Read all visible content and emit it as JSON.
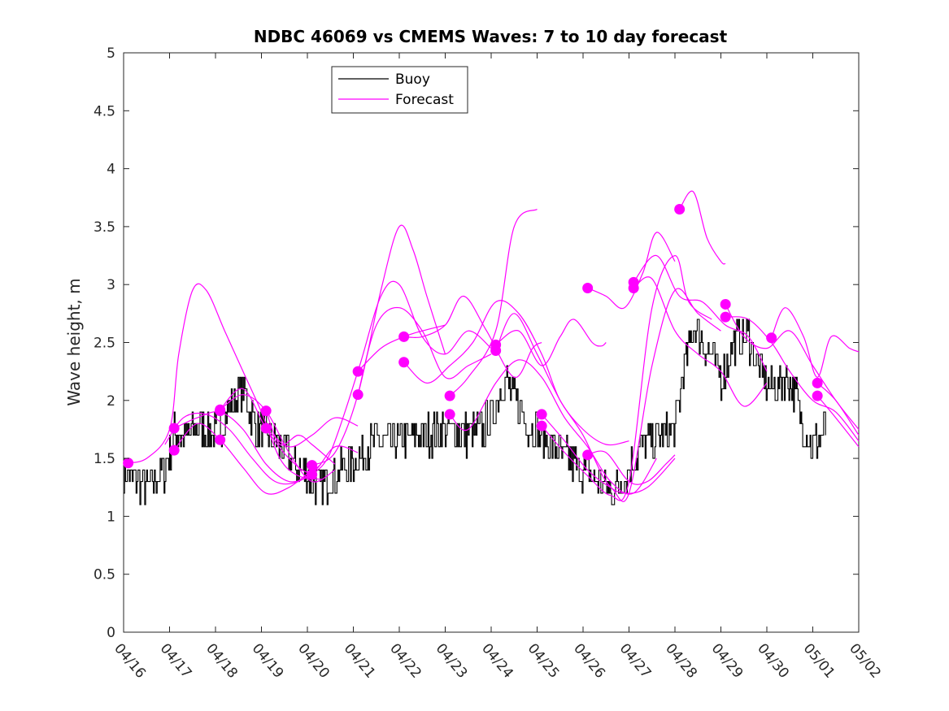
{
  "chart_data": {
    "type": "line",
    "title": "NDBC 46069 vs CMEMS Waves: 7 to 10 day forecast",
    "xlabel": "",
    "ylabel": "Wave height, m",
    "xlim": [
      0,
      16
    ],
    "ylim": [
      0,
      5
    ],
    "grid": false,
    "legend_position": "top-left",
    "x_tick_values": [
      0,
      1,
      2,
      3,
      4,
      5,
      6,
      7,
      8,
      9,
      10,
      11,
      12,
      13,
      14,
      15,
      16
    ],
    "x_tick_labels": [
      "04/16",
      "04/17",
      "04/18",
      "04/19",
      "04/20",
      "04/21",
      "04/22",
      "04/23",
      "04/24",
      "04/25",
      "04/26",
      "04/27",
      "04/28",
      "04/29",
      "04/30",
      "05/01",
      "05/02"
    ],
    "y_ticks": [
      0,
      0.5,
      1,
      1.5,
      2,
      2.5,
      3,
      3.5,
      4,
      4.5,
      5
    ],
    "y_tick_labels": [
      "0",
      "0.5",
      "1",
      "1.5",
      "2",
      "2.5",
      "3",
      "3.5",
      "4",
      "4.5",
      "5"
    ],
    "colors": {
      "buoy": "#000000",
      "forecast": "#ff00ff"
    },
    "legend": [
      {
        "name": "Buoy",
        "color": "#000000"
      },
      {
        "name": "Forecast",
        "color": "#ff00ff"
      }
    ],
    "buoy": {
      "name": "Buoy",
      "points": [
        [
          0,
          1.38
        ],
        [
          0.5,
          1.25
        ],
        [
          0.9,
          1.4
        ],
        [
          1.1,
          1.75
        ],
        [
          1.3,
          1.65
        ],
        [
          1.6,
          1.8
        ],
        [
          2,
          1.7
        ],
        [
          2.3,
          1.95
        ],
        [
          2.6,
          2.1
        ],
        [
          2.9,
          1.75
        ],
        [
          3.3,
          1.65
        ],
        [
          3.7,
          1.45
        ],
        [
          4,
          1.35
        ],
        [
          4.3,
          1.25
        ],
        [
          4.6,
          1.35
        ],
        [
          5,
          1.48
        ],
        [
          5.5,
          1.65
        ],
        [
          6,
          1.65
        ],
        [
          6.5,
          1.7
        ],
        [
          7,
          1.75
        ],
        [
          7.5,
          1.7
        ],
        [
          7.8,
          1.75
        ],
        [
          8,
          1.85
        ],
        [
          8.3,
          2.2
        ],
        [
          8.5,
          2.0
        ],
        [
          8.8,
          1.8
        ],
        [
          9.2,
          1.65
        ],
        [
          9.6,
          1.5
        ],
        [
          10,
          1.4
        ],
        [
          10.3,
          1.3
        ],
        [
          10.6,
          1.2
        ],
        [
          10.9,
          1.35
        ],
        [
          11.2,
          1.55
        ],
        [
          11.5,
          1.65
        ],
        [
          12,
          1.75
        ],
        [
          12.2,
          2.3
        ],
        [
          12.4,
          2.65
        ],
        [
          12.7,
          2.45
        ],
        [
          13,
          2.2
        ],
        [
          13.3,
          2.5
        ],
        [
          13.6,
          2.55
        ],
        [
          13.9,
          2.2
        ],
        [
          14.2,
          2.1
        ],
        [
          14.4,
          2.2
        ],
        [
          14.6,
          2.1
        ],
        [
          14.8,
          1.75
        ],
        [
          15,
          1.6
        ],
        [
          15.3,
          1.75
        ]
      ]
    },
    "forecast": {
      "name": "Forecast",
      "series": [
        [
          [
            0,
            1.46
          ],
          [
            0.5,
            1.5
          ],
          [
            1,
            1.75
          ],
          [
            1.2,
            2.4
          ],
          [
            1.5,
            2.95
          ],
          [
            1.8,
            2.95
          ],
          [
            2.2,
            2.6
          ],
          [
            2.6,
            2.25
          ],
          [
            3,
            1.9
          ],
          [
            3.4,
            1.5
          ],
          [
            3.8,
            1.35
          ],
          [
            4.3,
            1.32
          ]
        ],
        [
          [
            0.9,
            1.62
          ],
          [
            1.3,
            1.85
          ],
          [
            1.8,
            1.88
          ],
          [
            2.3,
            1.75
          ],
          [
            2.8,
            1.5
          ],
          [
            3.3,
            1.3
          ],
          [
            3.8,
            1.3
          ],
          [
            4.3,
            1.45
          ]
        ],
        [
          [
            1.1,
            1.76
          ],
          [
            1.6,
            1.85
          ],
          [
            2.1,
            1.9
          ],
          [
            2.6,
            1.75
          ],
          [
            3.1,
            1.45
          ],
          [
            3.6,
            1.3
          ],
          [
            4.1,
            1.35
          ]
        ],
        [
          [
            1.1,
            1.57
          ],
          [
            1.6,
            1.8
          ],
          [
            2.1,
            1.66
          ],
          [
            2.6,
            1.42
          ],
          [
            3.1,
            1.2
          ],
          [
            3.6,
            1.25
          ],
          [
            4.1,
            1.4
          ]
        ],
        [
          [
            2.1,
            1.92
          ],
          [
            2.6,
            2.05
          ],
          [
            3.1,
            1.91
          ],
          [
            3.6,
            1.55
          ],
          [
            4.1,
            1.3
          ],
          [
            4.6,
            1.4
          ]
        ],
        [
          [
            2.1,
            1.92
          ],
          [
            2.6,
            2.1
          ],
          [
            3.1,
            1.76
          ],
          [
            3.6,
            1.5
          ],
          [
            4.1,
            1.38
          ],
          [
            4.6,
            1.6
          ],
          [
            5.1,
            1.55
          ]
        ],
        [
          [
            3.1,
            1.91
          ],
          [
            3.4,
            1.62
          ],
          [
            3.8,
            1.7
          ],
          [
            4.1,
            1.62
          ],
          [
            4.6,
            1.45
          ]
        ],
        [
          [
            3.1,
            1.76
          ],
          [
            3.6,
            1.6
          ],
          [
            4.1,
            1.7
          ],
          [
            4.6,
            1.85
          ],
          [
            5.1,
            1.78
          ]
        ],
        [
          [
            4.1,
            1.44
          ],
          [
            4.6,
            1.55
          ],
          [
            5.1,
            2.05
          ],
          [
            5.6,
            2.95
          ],
          [
            6,
            3.5
          ],
          [
            6.3,
            3.3
          ],
          [
            6.6,
            2.9
          ],
          [
            7,
            2.4
          ]
        ],
        [
          [
            4.1,
            1.36
          ],
          [
            4.5,
            1.55
          ],
          [
            5.1,
            2.25
          ],
          [
            5.6,
            2.9
          ],
          [
            6,
            3.0
          ],
          [
            6.5,
            2.55
          ],
          [
            7,
            2.4
          ],
          [
            7.5,
            2.6
          ],
          [
            8,
            2.45
          ]
        ],
        [
          [
            5.1,
            2.05
          ],
          [
            5.5,
            2.65
          ],
          [
            6,
            2.8
          ],
          [
            6.5,
            2.6
          ],
          [
            7,
            2.2
          ],
          [
            7.5,
            2.3
          ],
          [
            8,
            2.4
          ]
        ],
        [
          [
            5.1,
            2.25
          ],
          [
            5.6,
            2.45
          ],
          [
            6.1,
            2.55
          ],
          [
            6.5,
            2.6
          ],
          [
            7,
            2.65
          ]
        ],
        [
          [
            6.1,
            2.55
          ],
          [
            6.5,
            2.55
          ],
          [
            7,
            2.65
          ],
          [
            7.4,
            2.9
          ],
          [
            7.9,
            2.6
          ],
          [
            8.5,
            2.2
          ],
          [
            8.9,
            2.45
          ],
          [
            9.1,
            2.5
          ]
        ],
        [
          [
            6.1,
            2.33
          ],
          [
            6.6,
            2.15
          ],
          [
            7.1,
            2.3
          ],
          [
            7.6,
            2.5
          ],
          [
            8.1,
            2.85
          ],
          [
            8.6,
            2.75
          ],
          [
            9.1,
            2.4
          ],
          [
            9.5,
            2.0
          ],
          [
            10,
            1.75
          ],
          [
            10.5,
            1.62
          ],
          [
            11,
            1.65
          ]
        ],
        [
          [
            7.1,
            2.04
          ],
          [
            7.5,
            2.2
          ],
          [
            8.1,
            2.6
          ],
          [
            8.5,
            3.5
          ],
          [
            9,
            3.65
          ]
        ],
        [
          [
            7.1,
            1.88
          ],
          [
            7.5,
            1.75
          ],
          [
            8.1,
            2.15
          ],
          [
            8.6,
            2.35
          ],
          [
            9.1,
            2.2
          ],
          [
            9.6,
            1.85
          ],
          [
            10.1,
            1.6
          ],
          [
            10.6,
            1.3
          ],
          [
            11.1,
            1.2
          ],
          [
            11.6,
            1.5
          ]
        ],
        [
          [
            8.1,
            2.48
          ],
          [
            8.6,
            2.6
          ],
          [
            9.1,
            2.3
          ],
          [
            9.5,
            2.55
          ],
          [
            9.8,
            2.7
          ],
          [
            10.2,
            2.5
          ],
          [
            10.4,
            2.47
          ],
          [
            10.5,
            2.5
          ]
        ],
        [
          [
            8.1,
            2.43
          ],
          [
            8.5,
            2.75
          ],
          [
            9,
            2.4
          ],
          [
            9.5,
            2.0
          ],
          [
            10,
            1.7
          ],
          [
            10.5,
            1.3
          ],
          [
            10.9,
            1.2
          ],
          [
            11.4,
            1.25
          ],
          [
            12,
            1.5
          ]
        ],
        [
          [
            9.1,
            1.88
          ],
          [
            9.6,
            1.65
          ],
          [
            10.1,
            1.4
          ],
          [
            10.6,
            1.25
          ],
          [
            11,
            1.2
          ],
          [
            11.5,
            2.3
          ],
          [
            12,
            2.95
          ],
          [
            12.5,
            2.75
          ],
          [
            13,
            2.6
          ]
        ],
        [
          [
            9.1,
            1.78
          ],
          [
            9.6,
            1.55
          ],
          [
            10.1,
            1.35
          ],
          [
            10.6,
            1.18
          ],
          [
            11,
            1.3
          ],
          [
            11.5,
            2.8
          ],
          [
            12,
            3.25
          ],
          [
            12.3,
            2.85
          ],
          [
            12.8,
            2.7
          ]
        ],
        [
          [
            10.1,
            2.97
          ],
          [
            10.5,
            2.9
          ],
          [
            10.9,
            2.8
          ],
          [
            11.3,
            3.1
          ],
          [
            11.6,
            3.45
          ],
          [
            12,
            3.2
          ]
        ],
        [
          [
            10.1,
            1.53
          ],
          [
            10.5,
            1.55
          ],
          [
            11,
            1.3
          ],
          [
            11.4,
            1.3
          ],
          [
            11.8,
            1.45
          ],
          [
            12,
            1.53
          ]
        ],
        [
          [
            11.1,
            3.02
          ],
          [
            11.6,
            3.25
          ],
          [
            12.1,
            2.9
          ],
          [
            12.6,
            2.85
          ],
          [
            13.1,
            2.65
          ],
          [
            13.6,
            2.55
          ],
          [
            14,
            2.25
          ]
        ],
        [
          [
            11.1,
            2.97
          ],
          [
            11.5,
            3.05
          ],
          [
            12,
            2.6
          ],
          [
            12.5,
            2.4
          ],
          [
            13,
            2.25
          ],
          [
            13.5,
            1.95
          ],
          [
            14,
            2.15
          ]
        ],
        [
          [
            12.1,
            3.65
          ],
          [
            12.4,
            3.8
          ],
          [
            12.7,
            3.4
          ],
          [
            13,
            3.2
          ],
          [
            13.1,
            3.18
          ]
        ],
        [
          [
            13.1,
            2.83
          ],
          [
            13.5,
            2.55
          ],
          [
            14,
            2.45
          ],
          [
            14.5,
            2.6
          ],
          [
            15,
            2.3
          ],
          [
            15.5,
            2.0
          ],
          [
            16,
            1.75
          ]
        ],
        [
          [
            13.1,
            2.72
          ],
          [
            13.6,
            2.7
          ],
          [
            14.1,
            2.5
          ],
          [
            14.5,
            2.25
          ],
          [
            15,
            2.0
          ],
          [
            15.5,
            1.9
          ],
          [
            16,
            1.65
          ]
        ],
        [
          [
            14.1,
            2.54
          ],
          [
            14.4,
            2.8
          ],
          [
            14.8,
            2.55
          ],
          [
            15.1,
            2.2
          ],
          [
            15.4,
            2.55
          ],
          [
            15.8,
            2.45
          ],
          [
            16,
            2.42
          ]
        ],
        [
          [
            15.1,
            2.15
          ],
          [
            15.5,
            2.0
          ],
          [
            16,
            1.7
          ]
        ],
        [
          [
            15.1,
            2.04
          ],
          [
            15.5,
            1.85
          ],
          [
            16,
            1.6
          ]
        ]
      ],
      "markers": [
        [
          0.1,
          1.46
        ],
        [
          1.1,
          1.76
        ],
        [
          1.1,
          1.57
        ],
        [
          2.1,
          1.92
        ],
        [
          2.1,
          1.91
        ],
        [
          2.1,
          1.66
        ],
        [
          3.1,
          1.91
        ],
        [
          3.1,
          1.76
        ],
        [
          4.1,
          1.44
        ],
        [
          4.1,
          1.36
        ],
        [
          5.1,
          2.25
        ],
        [
          5.1,
          2.05
        ],
        [
          6.1,
          2.55
        ],
        [
          6.1,
          2.33
        ],
        [
          7.1,
          2.04
        ],
        [
          7.1,
          1.88
        ],
        [
          8.1,
          2.48
        ],
        [
          8.1,
          2.43
        ],
        [
          9.1,
          1.88
        ],
        [
          9.1,
          1.78
        ],
        [
          10.1,
          2.97
        ],
        [
          10.1,
          1.53
        ],
        [
          11.1,
          3.02
        ],
        [
          11.1,
          2.97
        ],
        [
          12.1,
          3.65
        ],
        [
          13.1,
          2.83
        ],
        [
          13.1,
          2.72
        ],
        [
          14.1,
          2.54
        ],
        [
          15.1,
          2.15
        ],
        [
          15.1,
          2.04
        ]
      ]
    }
  }
}
